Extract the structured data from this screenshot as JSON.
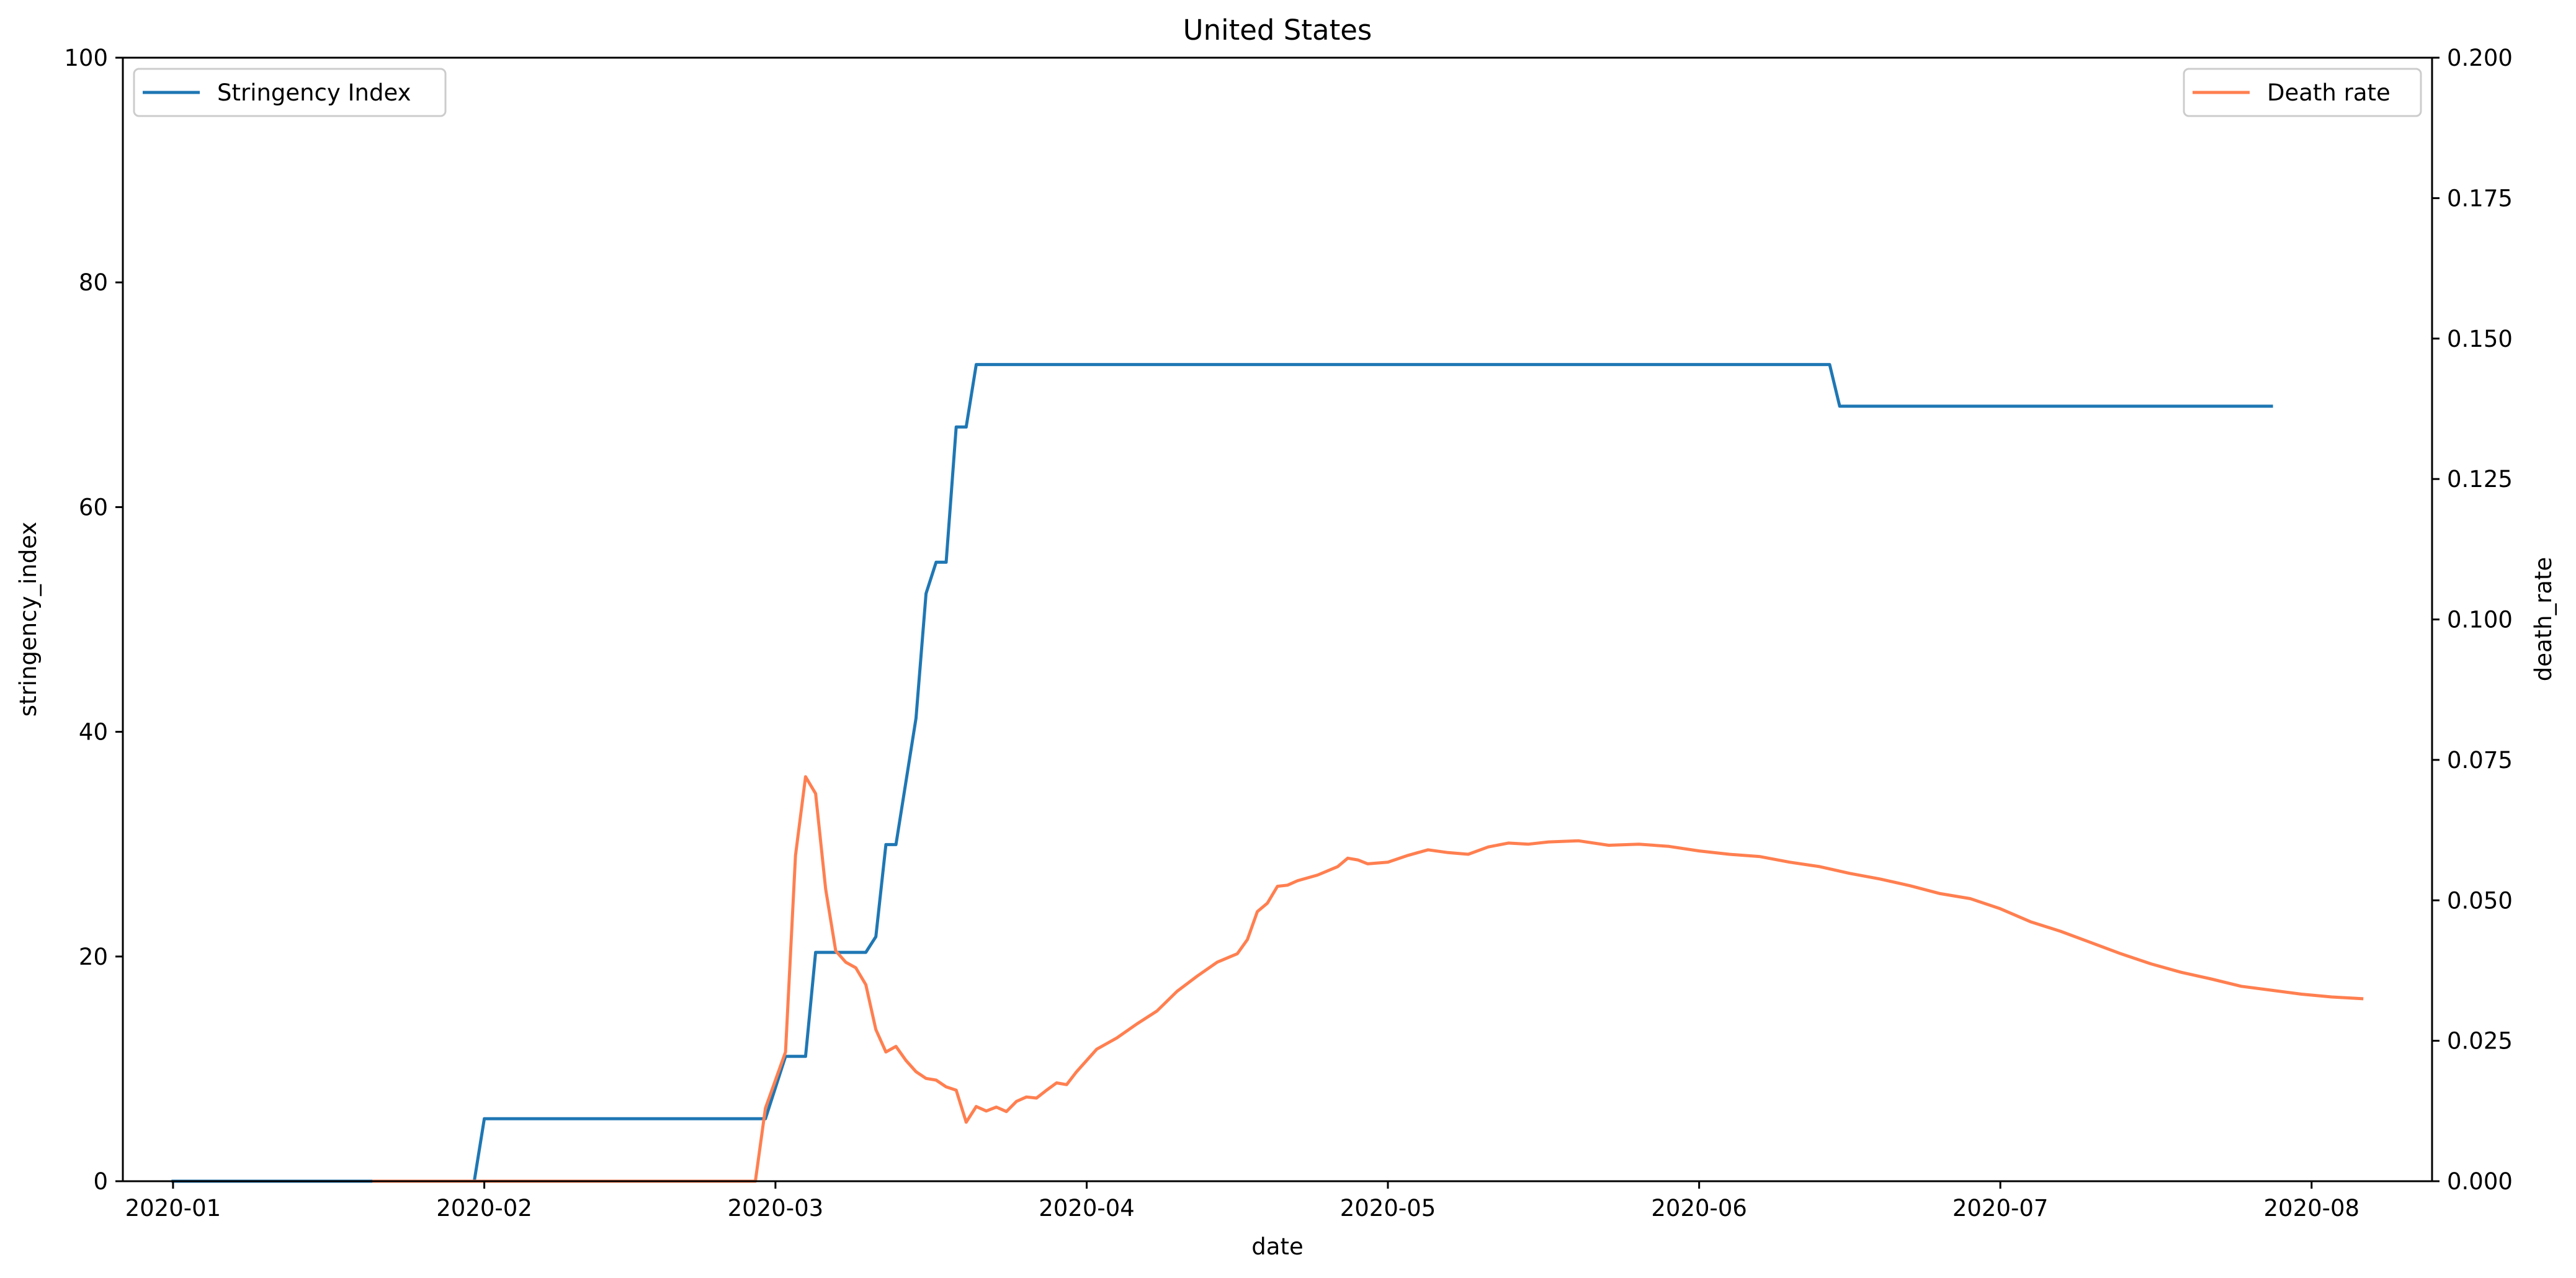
{
  "chart_data": {
    "type": "line",
    "title": "United States",
    "xlabel": "date",
    "ylabel_left": "stringency_index",
    "ylabel_right": "death_rate",
    "x_axis": {
      "type": "date",
      "range": [
        "2019-12-27",
        "2020-08-13"
      ],
      "ticks": [
        "2020-01-01",
        "2020-02-01",
        "2020-03-01",
        "2020-04-01",
        "2020-05-01",
        "2020-06-01",
        "2020-07-01",
        "2020-08-01"
      ],
      "tick_labels": [
        "2020-01",
        "2020-02",
        "2020-03",
        "2020-04",
        "2020-05",
        "2020-06",
        "2020-07",
        "2020-08"
      ]
    },
    "y_left": {
      "range": [
        0,
        100
      ],
      "ticks": [
        0,
        20,
        40,
        60,
        80,
        100
      ],
      "tick_labels": [
        "0",
        "20",
        "40",
        "60",
        "80",
        "100"
      ]
    },
    "y_right": {
      "range": [
        0,
        0.2
      ],
      "ticks": [
        0,
        0.025,
        0.05,
        0.075,
        0.1,
        0.125,
        0.15,
        0.175,
        0.2
      ],
      "tick_labels": [
        "0.000",
        "0.025",
        "0.050",
        "0.075",
        "0.100",
        "0.125",
        "0.150",
        "0.175",
        "0.200"
      ]
    },
    "grid": false,
    "series": [
      {
        "name": "Stringency Index",
        "axis": "left",
        "color": "#1f77b4",
        "legend": "top-left",
        "points": [
          [
            "2020-01-01",
            0
          ],
          [
            "2020-01-31",
            0
          ],
          [
            "2020-02-01",
            5.56
          ],
          [
            "2020-02-29",
            5.56
          ],
          [
            "2020-03-02",
            11.11
          ],
          [
            "2020-03-04",
            11.11
          ],
          [
            "2020-03-05",
            20.37
          ],
          [
            "2020-03-10",
            20.37
          ],
          [
            "2020-03-11",
            21.76
          ],
          [
            "2020-03-12",
            29.96
          ],
          [
            "2020-03-13",
            29.96
          ],
          [
            "2020-03-15",
            41.2
          ],
          [
            "2020-03-16",
            52.31
          ],
          [
            "2020-03-17",
            55.09
          ],
          [
            "2020-03-18",
            55.09
          ],
          [
            "2020-03-19",
            67.13
          ],
          [
            "2020-03-20",
            67.13
          ],
          [
            "2020-03-21",
            72.69
          ],
          [
            "2020-06-14",
            72.69
          ],
          [
            "2020-06-15",
            68.98
          ],
          [
            "2020-07-28",
            68.98
          ]
        ]
      },
      {
        "name": "Death rate",
        "axis": "right",
        "color": "#ff7f50",
        "legend": "top-right",
        "points": [
          [
            "2020-01-21",
            0
          ],
          [
            "2020-02-28",
            0
          ],
          [
            "2020-02-29",
            0.013
          ],
          [
            "2020-03-01",
            0.018
          ],
          [
            "2020-03-02",
            0.023
          ],
          [
            "2020-03-03",
            0.058
          ],
          [
            "2020-03-04",
            0.072
          ],
          [
            "2020-03-05",
            0.069
          ],
          [
            "2020-03-06",
            0.052
          ],
          [
            "2020-03-07",
            0.041
          ],
          [
            "2020-03-08",
            0.039
          ],
          [
            "2020-03-09",
            0.038
          ],
          [
            "2020-03-10",
            0.035
          ],
          [
            "2020-03-11",
            0.027
          ],
          [
            "2020-03-12",
            0.023
          ],
          [
            "2020-03-13",
            0.024
          ],
          [
            "2020-03-14",
            0.0215
          ],
          [
            "2020-03-15",
            0.0195
          ],
          [
            "2020-03-16",
            0.0183
          ],
          [
            "2020-03-17",
            0.018
          ],
          [
            "2020-03-18",
            0.0168
          ],
          [
            "2020-03-19",
            0.0162
          ],
          [
            "2020-03-20",
            0.0105
          ],
          [
            "2020-03-21",
            0.0133
          ],
          [
            "2020-03-22",
            0.0125
          ],
          [
            "2020-03-23",
            0.0132
          ],
          [
            "2020-03-24",
            0.0124
          ],
          [
            "2020-03-25",
            0.0142
          ],
          [
            "2020-03-26",
            0.015
          ],
          [
            "2020-03-27",
            0.0148
          ],
          [
            "2020-03-28",
            0.0162
          ],
          [
            "2020-03-29",
            0.0175
          ],
          [
            "2020-03-30",
            0.0172
          ],
          [
            "2020-03-31",
            0.0195
          ],
          [
            "2020-04-02",
            0.0235
          ],
          [
            "2020-04-04",
            0.0255
          ],
          [
            "2020-04-06",
            0.028
          ],
          [
            "2020-04-08",
            0.0303
          ],
          [
            "2020-04-10",
            0.0338
          ],
          [
            "2020-04-12",
            0.0365
          ],
          [
            "2020-04-14",
            0.039
          ],
          [
            "2020-04-16",
            0.0405
          ],
          [
            "2020-04-17",
            0.043
          ],
          [
            "2020-04-18",
            0.048
          ],
          [
            "2020-04-19",
            0.0495
          ],
          [
            "2020-04-20",
            0.0525
          ],
          [
            "2020-04-21",
            0.0527
          ],
          [
            "2020-04-22",
            0.0535
          ],
          [
            "2020-04-24",
            0.0545
          ],
          [
            "2020-04-26",
            0.056
          ],
          [
            "2020-04-27",
            0.0575
          ],
          [
            "2020-04-28",
            0.0572
          ],
          [
            "2020-04-29",
            0.0565
          ],
          [
            "2020-05-01",
            0.0568
          ],
          [
            "2020-05-03",
            0.058
          ],
          [
            "2020-05-05",
            0.059
          ],
          [
            "2020-05-07",
            0.0585
          ],
          [
            "2020-05-09",
            0.0582
          ],
          [
            "2020-05-11",
            0.0595
          ],
          [
            "2020-05-13",
            0.0602
          ],
          [
            "2020-05-15",
            0.06
          ],
          [
            "2020-05-17",
            0.0604
          ],
          [
            "2020-05-20",
            0.0606
          ],
          [
            "2020-05-23",
            0.0598
          ],
          [
            "2020-05-26",
            0.06
          ],
          [
            "2020-05-29",
            0.0596
          ],
          [
            "2020-06-01",
            0.0588
          ],
          [
            "2020-06-04",
            0.0582
          ],
          [
            "2020-06-07",
            0.0578
          ],
          [
            "2020-06-10",
            0.0568
          ],
          [
            "2020-06-13",
            0.056
          ],
          [
            "2020-06-16",
            0.0548
          ],
          [
            "2020-06-19",
            0.0538
          ],
          [
            "2020-06-22",
            0.0526
          ],
          [
            "2020-06-25",
            0.0512
          ],
          [
            "2020-06-28",
            0.0503
          ],
          [
            "2020-07-01",
            0.0485
          ],
          [
            "2020-07-04",
            0.0462
          ],
          [
            "2020-07-07",
            0.0445
          ],
          [
            "2020-07-10",
            0.0425
          ],
          [
            "2020-07-13",
            0.0405
          ],
          [
            "2020-07-16",
            0.0387
          ],
          [
            "2020-07-19",
            0.0372
          ],
          [
            "2020-07-22",
            0.036
          ],
          [
            "2020-07-25",
            0.0347
          ],
          [
            "2020-07-28",
            0.034
          ],
          [
            "2020-07-31",
            0.0333
          ],
          [
            "2020-08-03",
            0.0328
          ],
          [
            "2020-08-06",
            0.0325
          ]
        ]
      }
    ]
  }
}
